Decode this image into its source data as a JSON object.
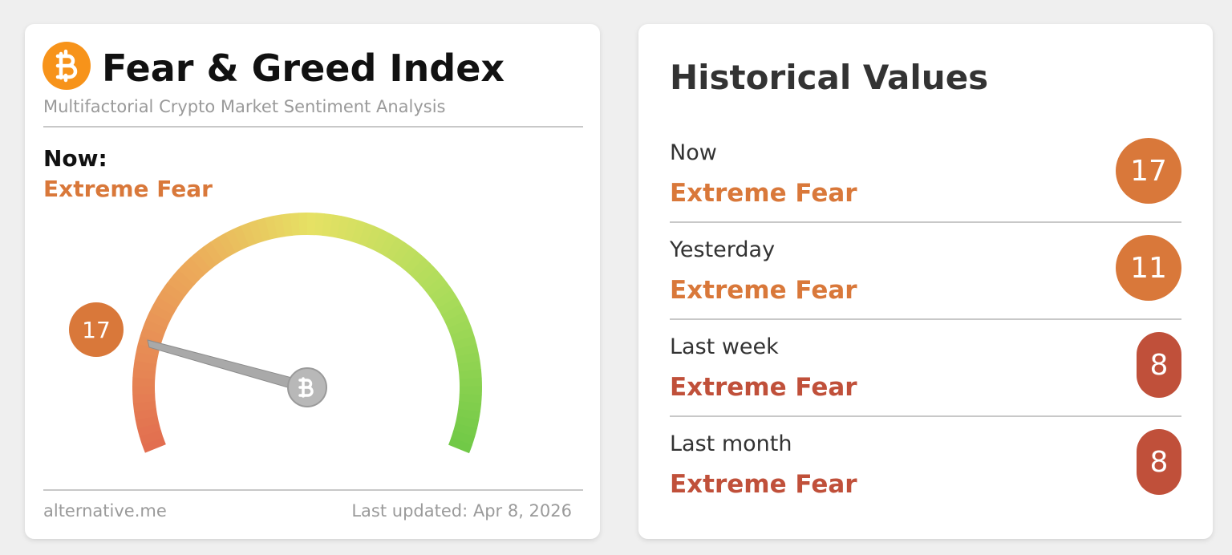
{
  "index_card": {
    "title": "Fear & Greed Index",
    "subtitle": "Multifactorial Crypto Market Sentiment Analysis",
    "now_label": "Now:",
    "classification": "Extreme Fear",
    "value": 17,
    "color": "#d9783a",
    "source": "alternative.me",
    "updated": "Last updated: Apr 8, 2026"
  },
  "historical": {
    "title": "Historical Values",
    "rows": [
      {
        "label": "Now",
        "classification": "Extreme Fear",
        "value": 17,
        "color": "#d9783a"
      },
      {
        "label": "Yesterday",
        "classification": "Extreme Fear",
        "value": 11,
        "color": "#d9783a"
      },
      {
        "label": "Last week",
        "classification": "Extreme Fear",
        "value": 8,
        "color": "#c0503a"
      },
      {
        "label": "Last month",
        "classification": "Extreme Fear",
        "value": 8,
        "color": "#c0503a"
      }
    ]
  }
}
